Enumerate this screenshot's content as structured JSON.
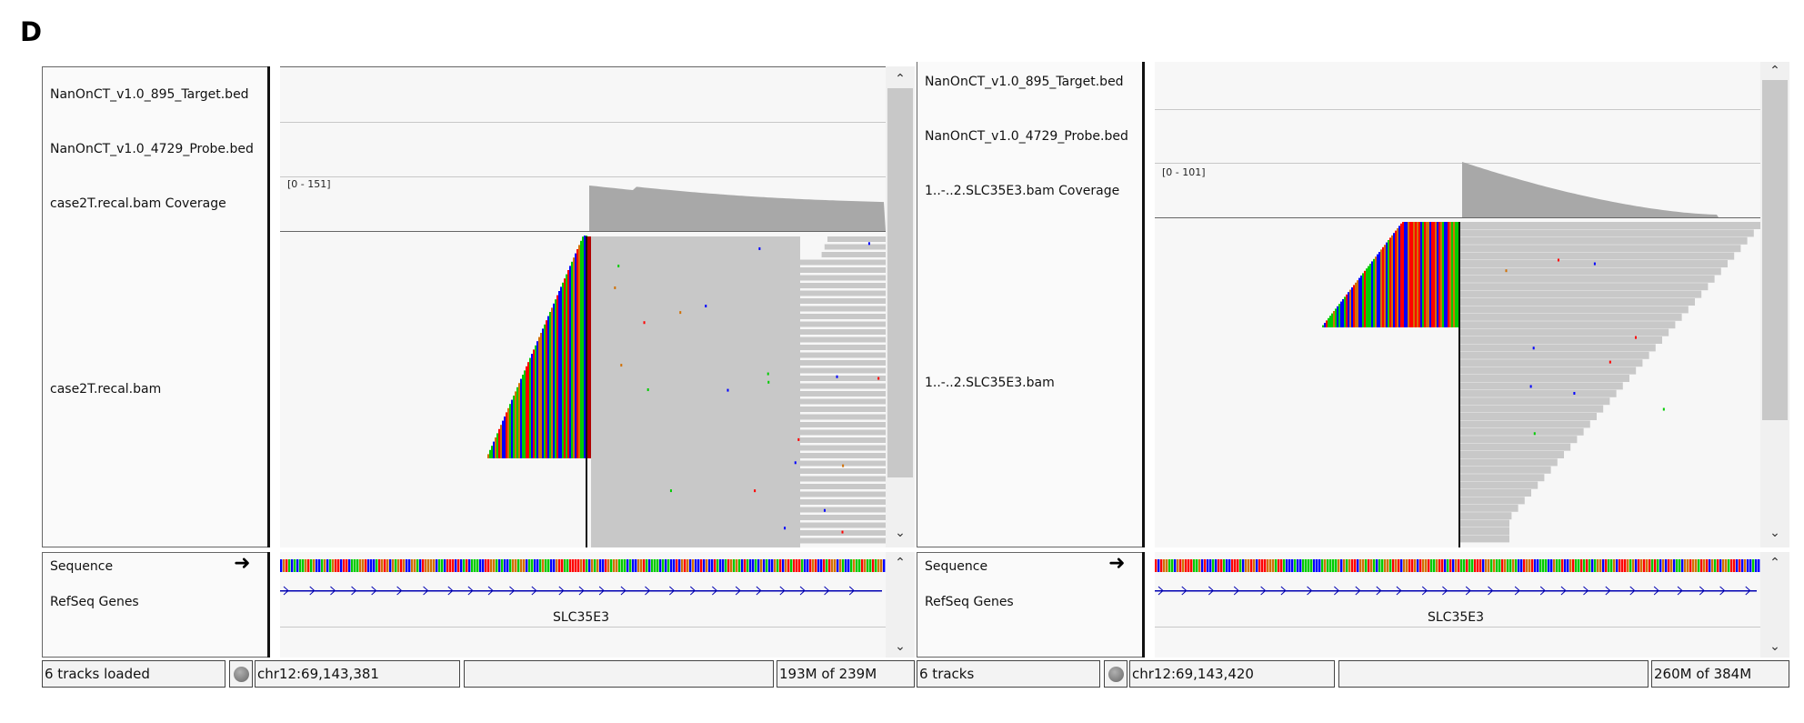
{
  "figure": {
    "panel_label": "D"
  },
  "left": {
    "tracks": {
      "target_bed": "NanOnCT_v1.0_895_Target.bed",
      "probe_bed": "NanOnCT_v1.0_4729_Probe.bed",
      "coverage": "case2T.recal.bam Coverage",
      "alignment": "case2T.recal.bam",
      "sequence": "Sequence",
      "refseq": "RefSeq Genes"
    },
    "coverage_range": "[0 - 151]",
    "gene_name": "SLC35E3",
    "status": {
      "tracks_loaded": "6 tracks loaded",
      "locus": "chr12:69,143,381",
      "message": "",
      "memory": "193M of 239M"
    }
  },
  "right": {
    "tracks": {
      "target_bed": "NanOnCT_v1.0_895_Target.bed",
      "probe_bed": "NanOnCT_v1.0_4729_Probe.bed",
      "coverage": "1..-..2.SLC35E3.bam Coverage",
      "alignment": "1..-..2.SLC35E3.bam",
      "sequence": "Sequence",
      "refseq": "RefSeq Genes"
    },
    "coverage_range": "[0 - 101]",
    "gene_name": "SLC35E3",
    "status": {
      "tracks_loaded": "6 tracks",
      "locus": "chr12:69,143,420",
      "message": "",
      "memory": "260M of 384M"
    }
  },
  "icons": {
    "strand": "right-arrow-icon",
    "scroll_up": "chevron-up-icon",
    "scroll_down": "chevron-down-icon",
    "busy": "status-indicator-icon"
  },
  "colors": {
    "base_A": "#00cc00",
    "base_C": "#0000ff",
    "base_G": "#d17105",
    "base_T": "#ff0000",
    "read_gray": "#c8c8c8",
    "coverage_gray": "#a8a8a8",
    "gene_blue": "#0000b2"
  }
}
